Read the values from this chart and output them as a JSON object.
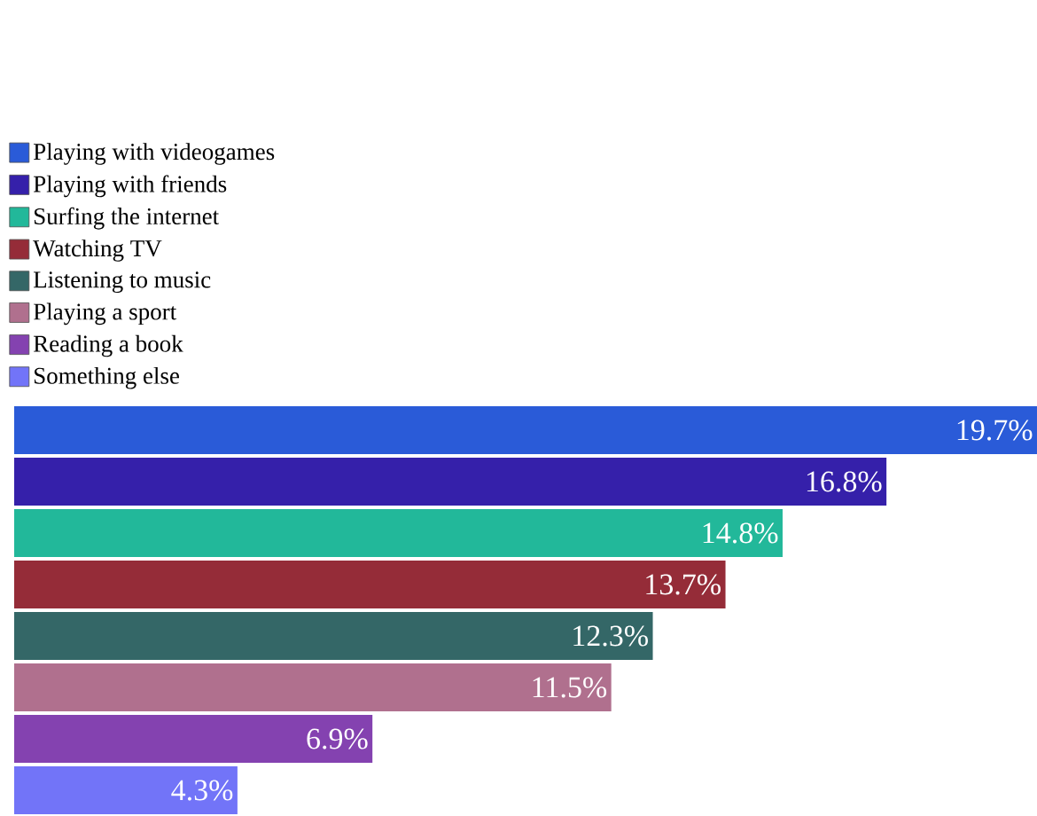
{
  "chart_data": {
    "type": "bar",
    "orientation": "horizontal",
    "categories": [
      null
    ],
    "legend": "top left",
    "series": [
      {
        "name": "Playing with videogames",
        "color": "#2a5bd8",
        "values": [
          19.7
        ],
        "value_labels": [
          "19.7%"
        ]
      },
      {
        "name": "Playing with friends",
        "color": "#3520aa",
        "values": [
          16.8
        ],
        "value_labels": [
          "16.8%"
        ]
      },
      {
        "name": "Surfing the internet",
        "color": "#22b89a",
        "values": [
          14.8
        ],
        "value_labels": [
          "14.8%"
        ]
      },
      {
        "name": "Watching TV",
        "color": "#952c38",
        "values": [
          13.7
        ],
        "value_labels": [
          "13.7%"
        ]
      },
      {
        "name": "Listening to music",
        "color": "#346767",
        "values": [
          12.3
        ],
        "value_labels": [
          "12.3%"
        ]
      },
      {
        "name": "Playing a sport",
        "color": "#b0708e",
        "values": [
          11.5
        ],
        "value_labels": [
          "11.5%"
        ]
      },
      {
        "name": "Reading a book",
        "color": "#8442b0",
        "values": [
          6.9
        ],
        "value_labels": [
          "6.9%"
        ]
      },
      {
        "name": "Something else",
        "color": "#7274f8",
        "values": [
          4.3
        ],
        "value_labels": [
          "4.3%"
        ]
      }
    ]
  }
}
